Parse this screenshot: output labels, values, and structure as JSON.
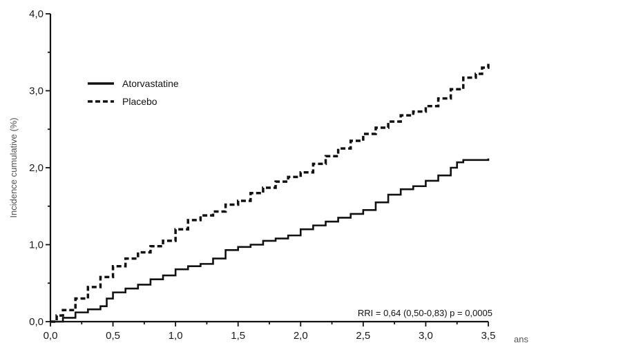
{
  "chart_data": {
    "type": "line",
    "title": "",
    "xlabel": "ans",
    "ylabel": "Incidence cumulative (%)",
    "xlim": [
      0,
      3.5
    ],
    "ylim": [
      0,
      4
    ],
    "x_ticks": [
      "0,0",
      "0,5",
      "1,0",
      "1,5",
      "2,0",
      "2,5",
      "3,0",
      "3,5"
    ],
    "y_ticks": [
      "0,0",
      "1,0",
      "2,0",
      "3,0",
      "4,0"
    ],
    "grid": false,
    "legend_position": "top-left",
    "annotation": "RRI = 0,64 (0,50-0,83)  p = 0,0005",
    "series": [
      {
        "name": "Atorvastatine",
        "style": "solid",
        "color": "#111111",
        "points": [
          [
            0,
            0
          ],
          [
            0.1,
            0.05
          ],
          [
            0.2,
            0.12
          ],
          [
            0.3,
            0.16
          ],
          [
            0.4,
            0.2
          ],
          [
            0.45,
            0.3
          ],
          [
            0.5,
            0.38
          ],
          [
            0.6,
            0.43
          ],
          [
            0.7,
            0.48
          ],
          [
            0.8,
            0.55
          ],
          [
            0.9,
            0.6
          ],
          [
            1.0,
            0.68
          ],
          [
            1.1,
            0.72
          ],
          [
            1.2,
            0.75
          ],
          [
            1.3,
            0.82
          ],
          [
            1.4,
            0.93
          ],
          [
            1.5,
            0.97
          ],
          [
            1.6,
            1.0
          ],
          [
            1.7,
            1.05
          ],
          [
            1.8,
            1.08
          ],
          [
            1.9,
            1.12
          ],
          [
            2.0,
            1.2
          ],
          [
            2.1,
            1.25
          ],
          [
            2.2,
            1.3
          ],
          [
            2.3,
            1.35
          ],
          [
            2.4,
            1.4
          ],
          [
            2.5,
            1.45
          ],
          [
            2.6,
            1.55
          ],
          [
            2.7,
            1.65
          ],
          [
            2.8,
            1.72
          ],
          [
            2.9,
            1.76
          ],
          [
            3.0,
            1.83
          ],
          [
            3.1,
            1.9
          ],
          [
            3.2,
            2.0
          ],
          [
            3.25,
            2.07
          ],
          [
            3.3,
            2.1
          ],
          [
            3.5,
            2.12
          ]
        ]
      },
      {
        "name": "Placebo",
        "style": "dashed",
        "color": "#111111",
        "points": [
          [
            0,
            0
          ],
          [
            0.05,
            0.08
          ],
          [
            0.1,
            0.15
          ],
          [
            0.2,
            0.3
          ],
          [
            0.3,
            0.45
          ],
          [
            0.4,
            0.58
          ],
          [
            0.5,
            0.72
          ],
          [
            0.6,
            0.82
          ],
          [
            0.7,
            0.9
          ],
          [
            0.8,
            0.98
          ],
          [
            0.9,
            1.05
          ],
          [
            1.0,
            1.2
          ],
          [
            1.1,
            1.32
          ],
          [
            1.2,
            1.38
          ],
          [
            1.3,
            1.43
          ],
          [
            1.4,
            1.52
          ],
          [
            1.5,
            1.57
          ],
          [
            1.6,
            1.67
          ],
          [
            1.7,
            1.74
          ],
          [
            1.8,
            1.82
          ],
          [
            1.9,
            1.88
          ],
          [
            2.0,
            1.94
          ],
          [
            2.1,
            2.05
          ],
          [
            2.2,
            2.15
          ],
          [
            2.3,
            2.25
          ],
          [
            2.4,
            2.35
          ],
          [
            2.5,
            2.44
          ],
          [
            2.6,
            2.52
          ],
          [
            2.7,
            2.6
          ],
          [
            2.8,
            2.68
          ],
          [
            2.9,
            2.73
          ],
          [
            3.0,
            2.8
          ],
          [
            3.1,
            2.9
          ],
          [
            3.2,
            3.02
          ],
          [
            3.3,
            3.17
          ],
          [
            3.4,
            3.22
          ],
          [
            3.45,
            3.3
          ],
          [
            3.5,
            3.35
          ]
        ]
      }
    ]
  }
}
